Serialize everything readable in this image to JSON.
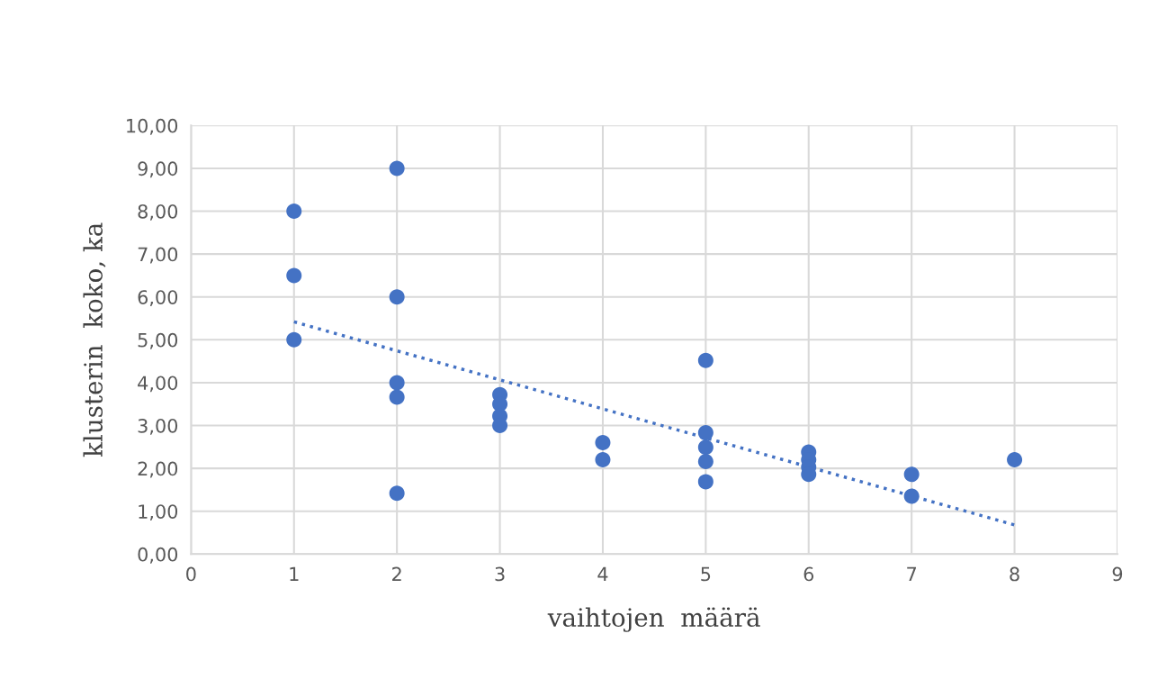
{
  "chart_data": {
    "type": "scatter",
    "xlabel": "vaihtojen  määrä",
    "ylabel": "klusterin  koko, ka",
    "xlim": [
      0,
      9
    ],
    "xticks": [
      0,
      1,
      2,
      3,
      4,
      5,
      6,
      7,
      8,
      9
    ],
    "ylim": [
      0,
      10
    ],
    "yticks": [
      {
        "value": 0,
        "label": "0,00"
      },
      {
        "value": 1,
        "label": "1,00"
      },
      {
        "value": 2,
        "label": "2,00"
      },
      {
        "value": 3,
        "label": "3,00"
      },
      {
        "value": 4,
        "label": "4,00"
      },
      {
        "value": 5,
        "label": "5,00"
      },
      {
        "value": 6,
        "label": "6,00"
      },
      {
        "value": 7,
        "label": "7,00"
      },
      {
        "value": 8,
        "label": "8,00"
      },
      {
        "value": 9,
        "label": "9,00"
      },
      {
        "value": 10,
        "label": "10,00"
      }
    ],
    "grid": true,
    "marker": "circle",
    "series": [
      {
        "color": "#4472c4",
        "x": [
          1,
          1,
          1,
          2,
          2,
          2,
          2,
          2,
          3,
          3,
          3,
          3,
          4,
          4,
          5,
          5,
          5,
          5,
          5,
          6,
          6,
          6,
          6,
          7,
          7,
          8
        ],
        "values": [
          8.0,
          6.5,
          5.0,
          9.0,
          6.0,
          4.0,
          3.66,
          1.42,
          3.72,
          3.5,
          3.22,
          3.0,
          2.6,
          2.2,
          4.52,
          2.83,
          2.49,
          2.16,
          1.69,
          2.38,
          2.2,
          2.03,
          1.86,
          1.86,
          1.35,
          2.2
        ]
      },
      {
        "type": "line",
        "color": "#4472c4",
        "line_style": "dotted",
        "marker": "none",
        "x": [
          1,
          8
        ],
        "values": [
          5.42,
          0.68
        ]
      }
    ]
  }
}
